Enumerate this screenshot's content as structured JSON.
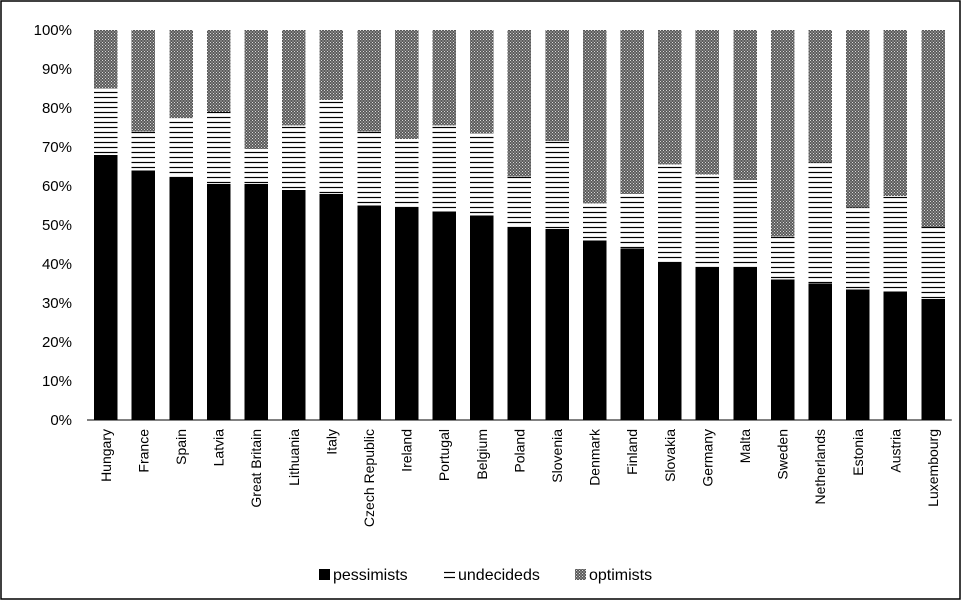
{
  "chart_data": {
    "type": "bar",
    "stacked": true,
    "categories": [
      "Hungary",
      "France",
      "Spain",
      "Latvia",
      "Great Britain",
      "Lithuania",
      "Italy",
      "Czech Republic",
      "Ireland",
      "Portugal",
      "Belgium",
      "Poland",
      "Slovenia",
      "Denmark",
      "Finland",
      "Slovakia",
      "Germany",
      "Malta",
      "Sweden",
      "Netherlands",
      "Estonia",
      "Austria",
      "Luxembourg"
    ],
    "series": [
      {
        "name": "pessimists",
        "values": [
          68,
          64,
          62,
          60.5,
          60.5,
          59,
          58,
          55,
          54.5,
          53.5,
          52.5,
          49.5,
          49,
          46,
          44,
          40.5,
          39,
          39,
          36,
          35,
          33.5,
          33,
          31
        ],
        "color": "#000000"
      },
      {
        "name": "undecideds",
        "values": [
          17,
          10,
          15.5,
          18.5,
          9,
          16.5,
          24,
          19,
          17.5,
          22,
          21,
          13,
          22.5,
          9.5,
          14,
          25,
          24,
          22.5,
          11,
          31,
          21,
          24.5,
          18.5
        ],
        "color": "#ffffff"
      },
      {
        "name": "optimists",
        "values": [
          15,
          26,
          22.5,
          21,
          30.5,
          24.5,
          18,
          26,
          28,
          24.5,
          26.5,
          37.5,
          28.5,
          44.5,
          42,
          34.5,
          37,
          38.5,
          53,
          34,
          45.5,
          42.5,
          50.5
        ],
        "color": "#888888"
      }
    ],
    "y_ticks": [
      "0%",
      "10%",
      "20%",
      "30%",
      "40%",
      "50%",
      "60%",
      "70%",
      "80%",
      "90%",
      "100%"
    ],
    "ylim": [
      0,
      100
    ],
    "legend_position": "bottom",
    "grid": false
  }
}
